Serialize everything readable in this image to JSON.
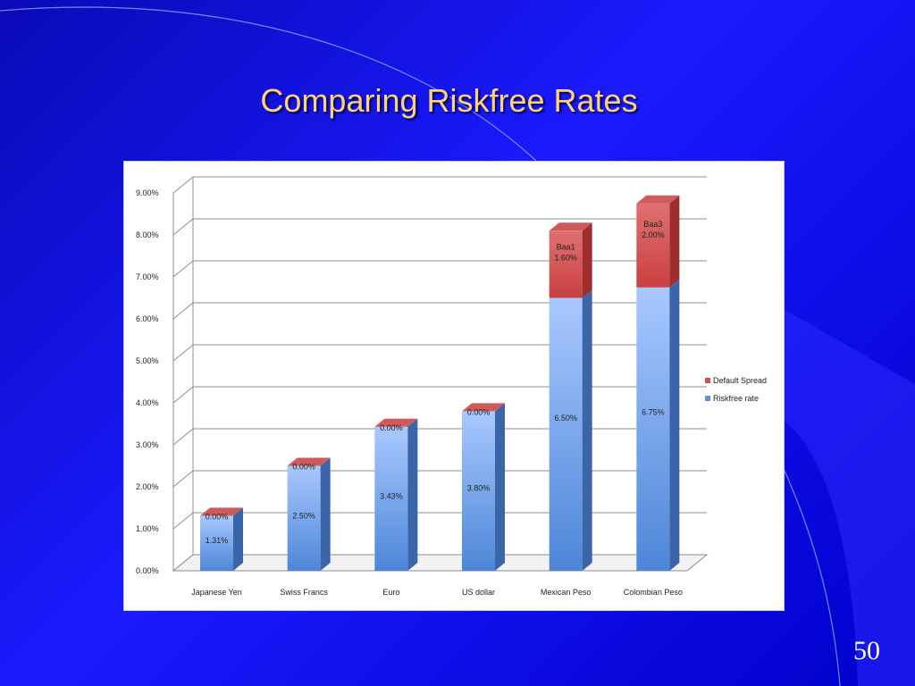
{
  "slide": {
    "title": "Comparing Riskfree Rates",
    "number": "50"
  },
  "colors": {
    "riskfree": "#5f93e0",
    "spread": "#d44d4d",
    "grid": "#8c8c8c"
  },
  "chart_data": {
    "type": "bar",
    "stacked": true,
    "3d": true,
    "categories": [
      "Japanese Yen",
      "Swiss Francs",
      "Euro",
      "US dollar",
      "Mexican Peso",
      "Colombian Peso"
    ],
    "series": [
      {
        "name": "Riskfree rate",
        "values": [
          1.31,
          2.5,
          3.43,
          3.8,
          6.5,
          6.75
        ],
        "labels": [
          "1.31%",
          "2.50%",
          "3.43%",
          "3.80%",
          "6.50%",
          "6.75%"
        ]
      },
      {
        "name": "Default Spread",
        "values": [
          0.0,
          0.0,
          0.0,
          0.0,
          1.6,
          2.0
        ],
        "labels": [
          "0.00%",
          "0.00%",
          "0.00%",
          "0.00%",
          "Baa1\n1.60%",
          "Baa3\n2.00%"
        ]
      }
    ],
    "ylim": [
      0,
      9
    ],
    "yticks": [
      "0.00%",
      "1.00%",
      "2.00%",
      "3.00%",
      "4.00%",
      "5.00%",
      "6.00%",
      "7.00%",
      "8.00%",
      "9.00%"
    ],
    "grid": true,
    "legend_position": "right"
  }
}
